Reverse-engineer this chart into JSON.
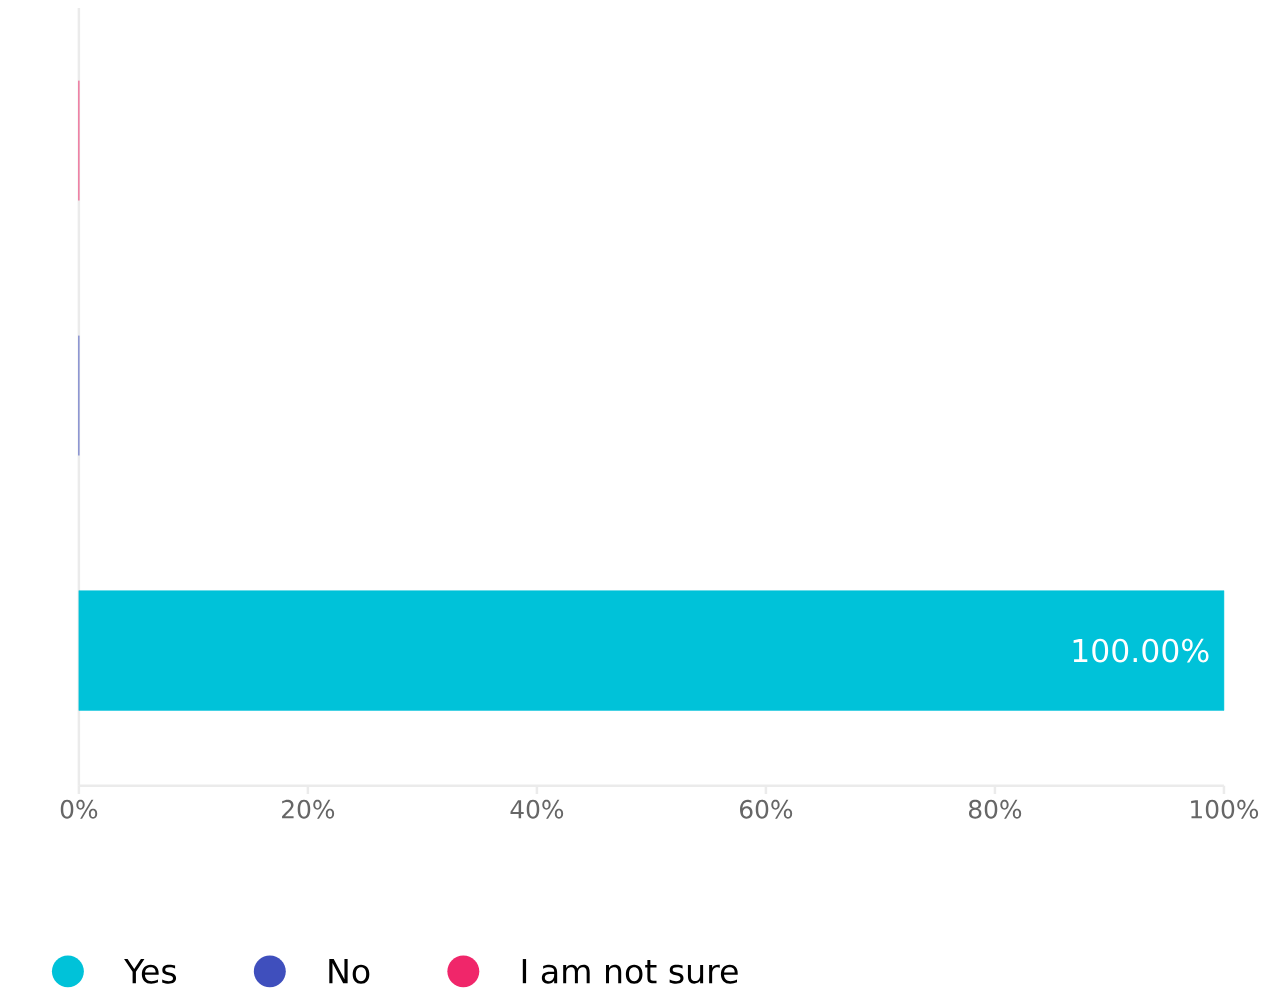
{
  "chart_data": {
    "type": "bar",
    "orientation": "horizontal",
    "categories": [
      null,
      null,
      null
    ],
    "series": [
      {
        "name": "Yes",
        "color": "#00c2d9",
        "values": [
          null,
          null,
          100
        ],
        "value_labels": [
          null,
          null,
          "100.00%"
        ]
      },
      {
        "name": "No",
        "color": "#3f4fbd",
        "values": [
          null,
          0,
          null
        ]
      },
      {
        "name": "I am not sure",
        "color": "#f0266a",
        "values": [
          0,
          null,
          null
        ]
      }
    ],
    "xlim": [
      0,
      100
    ],
    "xticks": [
      {
        "value": 0,
        "label": "0%"
      },
      {
        "value": 20,
        "label": "20%"
      },
      {
        "value": 40,
        "label": "40%"
      },
      {
        "value": 60,
        "label": "60%"
      },
      {
        "value": 80,
        "label": "80%"
      },
      {
        "value": 100,
        "label": "100%"
      }
    ],
    "grid": false,
    "legend": "bottom left"
  }
}
